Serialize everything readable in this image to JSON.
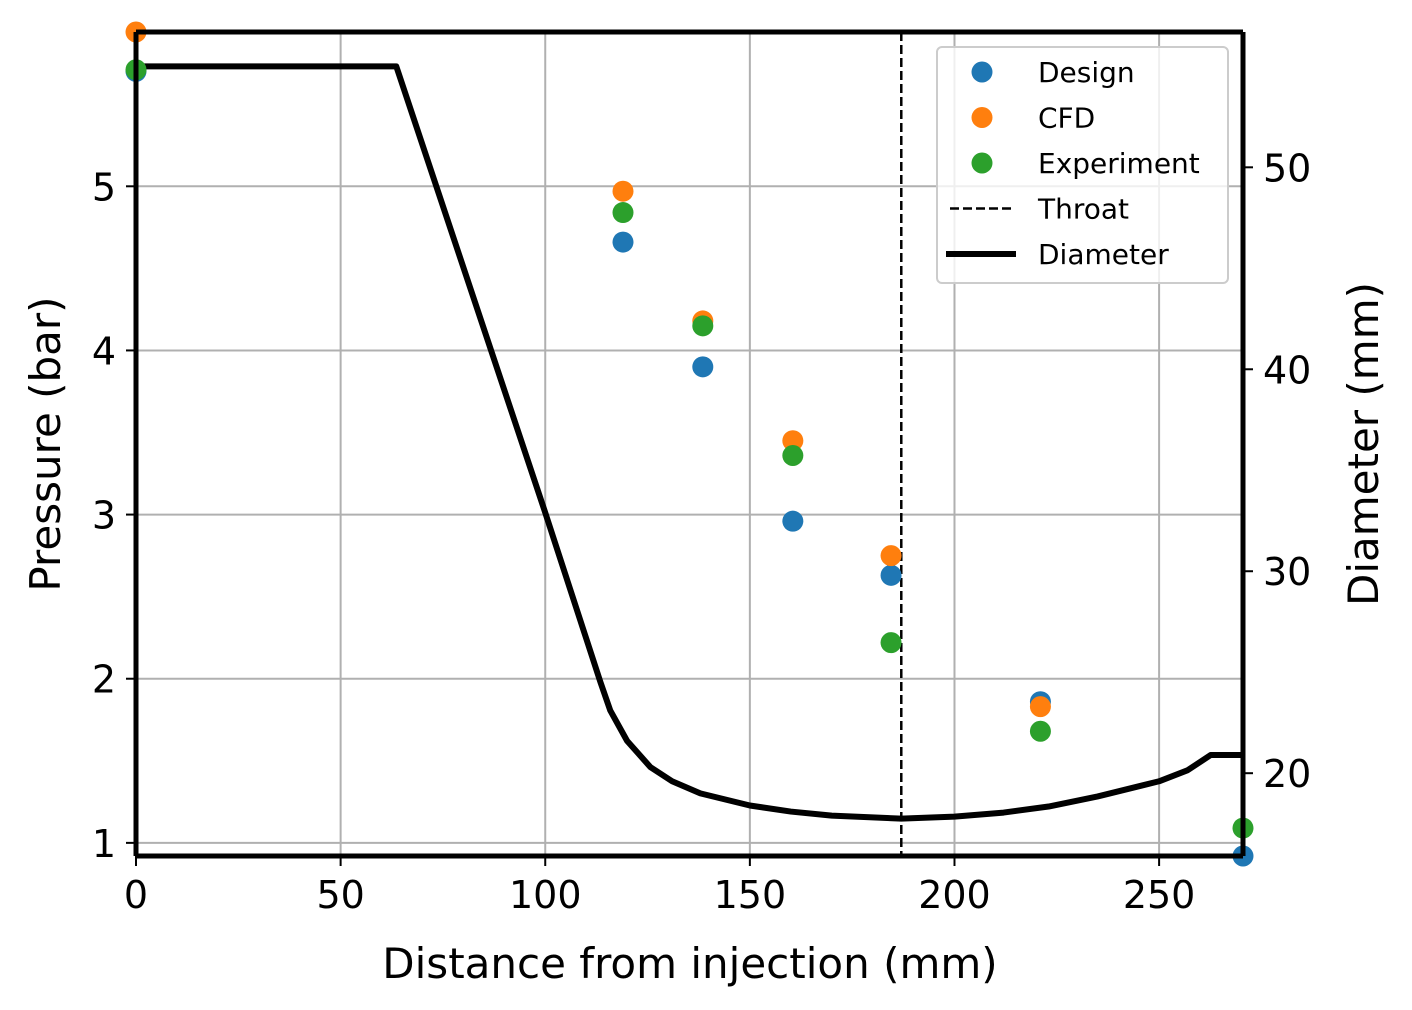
{
  "chart_data": {
    "type": "scatter",
    "title": "",
    "xlabel": "Distance from injection (mm)",
    "ylabel": "Pressure (bar)",
    "y2label": "Diameter (mm)",
    "xlim": [
      0,
      270.5
    ],
    "ylim": [
      0.92,
      5.94
    ],
    "y2lim": [
      15.9,
      56.7
    ],
    "grid": true,
    "x_ticks": [
      0,
      50,
      100,
      150,
      200,
      250
    ],
    "y_ticks": [
      1,
      2,
      3,
      4,
      5
    ],
    "y2_ticks": [
      20,
      30,
      40,
      50
    ],
    "legend": {
      "placement": "top-right",
      "entries": [
        {
          "label": "Design",
          "kind": "marker",
          "color": "#1f77b4"
        },
        {
          "label": "CFD",
          "kind": "marker",
          "color": "#ff7f0e"
        },
        {
          "label": "Experiment",
          "kind": "marker",
          "color": "#2ca02c"
        },
        {
          "label": "Throat",
          "kind": "dashed-line",
          "color": "#000000"
        },
        {
          "label": "Diameter",
          "kind": "solid-line",
          "color": "#000000"
        }
      ]
    },
    "series": [
      {
        "name": "Design",
        "axis": "left",
        "color": "#1f77b4",
        "x": [
          0,
          119,
          138.5,
          160.5,
          184.5,
          221,
          270.5
        ],
        "y": [
          5.7,
          4.66,
          3.9,
          2.96,
          2.63,
          1.86,
          0.92
        ]
      },
      {
        "name": "CFD",
        "axis": "left",
        "color": "#ff7f0e",
        "x": [
          0,
          119,
          138.5,
          160.5,
          184.5,
          221
        ],
        "y": [
          5.94,
          4.97,
          4.18,
          3.45,
          2.75,
          1.83
        ]
      },
      {
        "name": "Experiment",
        "axis": "left",
        "color": "#2ca02c",
        "x": [
          0,
          119,
          138.5,
          160.5,
          184.5,
          221,
          270.5
        ],
        "y": [
          5.71,
          4.84,
          4.15,
          3.36,
          2.22,
          1.68,
          1.09
        ]
      },
      {
        "name": "Diameter",
        "axis": "right",
        "color": "#000000",
        "style": "solid-line",
        "x": [
          0,
          63.6,
          100,
          113.5,
          115.9,
          120,
          125.7,
          131,
          137.9,
          150,
          160,
          170,
          187,
          200,
          212,
          223,
          235,
          250,
          257,
          262.6,
          270.5
        ],
        "y": [
          55,
          55,
          32.9,
          24.5,
          23.1,
          21.6,
          20.3,
          19.6,
          19.0,
          18.4,
          18.1,
          17.9,
          17.75,
          17.85,
          18.05,
          18.35,
          18.85,
          19.6,
          20.15,
          20.9,
          20.9
        ]
      }
    ],
    "annotations": [
      {
        "label": "Throat",
        "type": "vertical-dashed-line",
        "x": 187
      }
    ]
  }
}
